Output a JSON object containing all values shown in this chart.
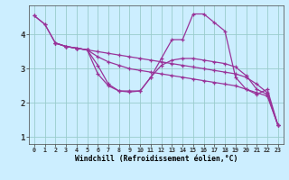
{
  "xlabel": "Windchill (Refroidissement éolien,°C)",
  "xlim": [
    -0.5,
    23.5
  ],
  "ylim": [
    0.8,
    4.85
  ],
  "bg_color": "#cceeff",
  "line_color": "#993399",
  "grid_color": "#99cccc",
  "lines": [
    {
      "x": [
        0,
        1,
        2,
        3,
        4,
        5,
        6,
        7,
        8,
        9,
        10,
        11,
        12,
        13,
        14,
        15,
        16,
        17,
        18,
        19,
        20,
        21,
        22,
        23
      ],
      "y": [
        4.55,
        4.3,
        3.75,
        3.65,
        3.6,
        3.55,
        2.85,
        2.5,
        2.35,
        2.32,
        2.35,
        2.75,
        3.3,
        3.85,
        3.85,
        4.6,
        4.6,
        4.35,
        4.1,
        2.75,
        2.4,
        2.25,
        2.4,
        1.35
      ]
    },
    {
      "x": [
        0,
        1,
        2,
        3,
        4,
        5,
        6,
        7,
        8,
        9,
        10,
        11,
        12,
        13,
        14,
        15,
        16,
        17,
        18,
        19,
        20,
        21,
        22,
        23
      ],
      "y": [
        4.55,
        4.3,
        3.75,
        3.65,
        3.6,
        3.55,
        3.1,
        2.55,
        2.35,
        2.35,
        2.35,
        2.75,
        3.1,
        3.25,
        3.3,
        3.3,
        3.25,
        3.2,
        3.15,
        3.05,
        2.8,
        2.4,
        2.25,
        1.35
      ]
    },
    {
      "x": [
        2,
        3,
        4,
        5,
        6,
        7,
        8,
        9,
        10,
        11,
        12,
        13,
        14,
        15,
        16,
        17,
        18,
        19,
        20,
        21,
        22,
        23
      ],
      "y": [
        3.75,
        3.65,
        3.6,
        3.55,
        3.35,
        3.2,
        3.1,
        3.0,
        2.95,
        2.9,
        2.85,
        2.8,
        2.75,
        2.7,
        2.65,
        2.6,
        2.55,
        2.5,
        2.4,
        2.3,
        2.2,
        1.35
      ]
    },
    {
      "x": [
        2,
        3,
        4,
        5,
        6,
        7,
        8,
        9,
        10,
        11,
        12,
        13,
        14,
        15,
        16,
        17,
        18,
        19,
        20,
        21,
        22,
        23
      ],
      "y": [
        3.75,
        3.65,
        3.6,
        3.55,
        3.5,
        3.45,
        3.4,
        3.35,
        3.3,
        3.25,
        3.2,
        3.15,
        3.1,
        3.05,
        3.0,
        2.95,
        2.9,
        2.85,
        2.75,
        2.55,
        2.3,
        1.35
      ]
    }
  ]
}
